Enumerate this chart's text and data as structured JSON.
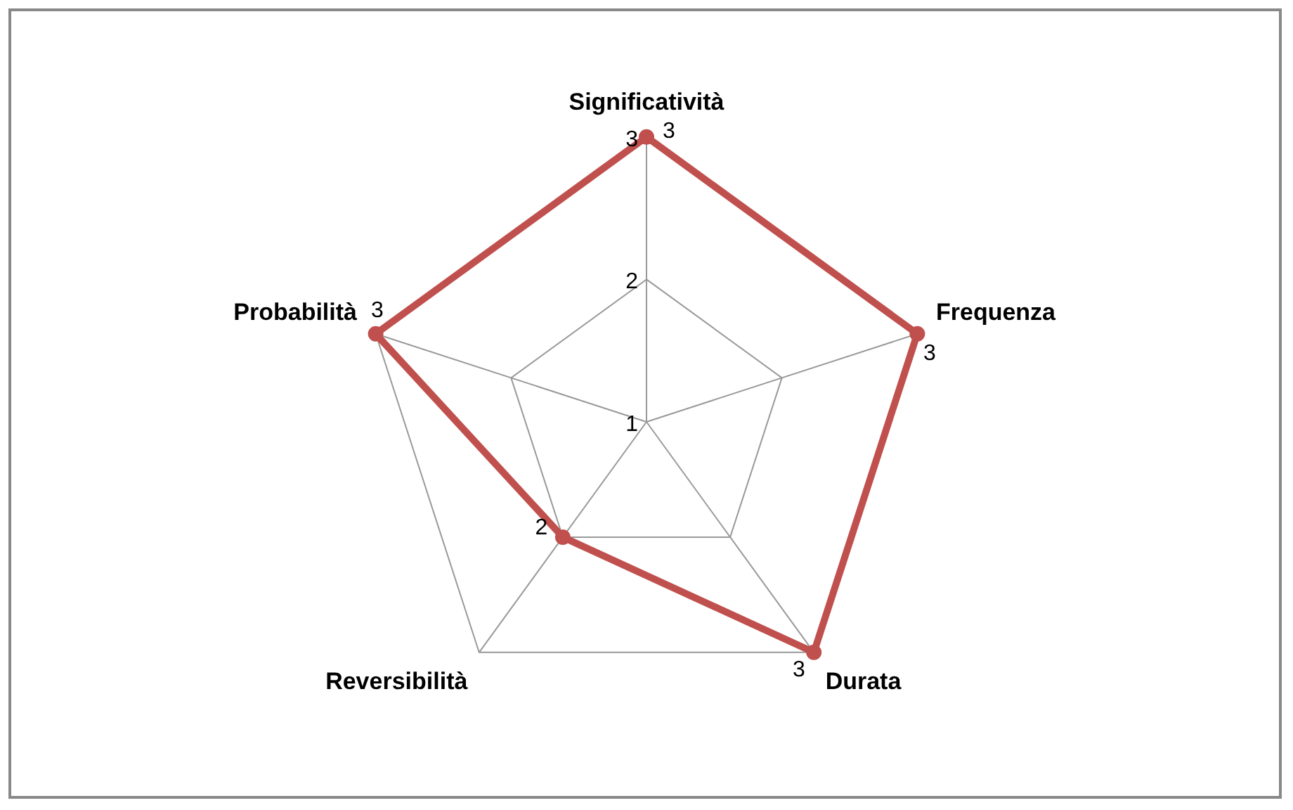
{
  "chart_data": {
    "type": "radar",
    "categories": [
      "Significatività",
      "Frequenza",
      "Durata",
      "Reversibilità",
      "Probabilità"
    ],
    "series": [
      {
        "color": "#c0504d",
        "values": [
          3,
          3,
          3,
          2,
          3
        ]
      }
    ],
    "ylim": [
      1,
      3
    ],
    "yticks": [
      1,
      2,
      3
    ],
    "grid": true,
    "legend": false,
    "data_labels": true
  }
}
